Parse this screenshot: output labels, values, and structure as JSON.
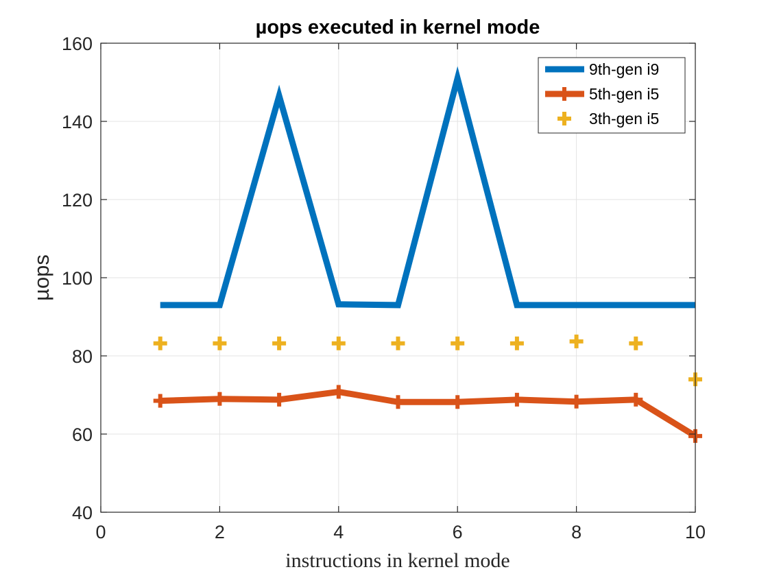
{
  "chart_data": {
    "type": "line",
    "title": "µops executed in kernel mode",
    "xlabel": "instructions in kernel mode",
    "ylabel": "µops",
    "xlim": [
      0,
      10
    ],
    "ylim": [
      40,
      160
    ],
    "xticks": [
      0,
      2,
      4,
      6,
      8,
      10
    ],
    "yticks": [
      40,
      60,
      80,
      100,
      120,
      140,
      160
    ],
    "grid": true,
    "legend_position": "top-right",
    "series": [
      {
        "name": "9th-gen i9",
        "style": "line",
        "color": "#0072BD",
        "x": [
          1,
          2,
          3,
          4,
          5,
          6,
          7,
          8,
          9,
          10
        ],
        "y": [
          93,
          93,
          146.5,
          93.2,
          93,
          151,
          93,
          93,
          93,
          93
        ]
      },
      {
        "name": "5th-gen i5",
        "style": "line-marker",
        "color": "#D95319",
        "x": [
          1,
          2,
          3,
          4,
          5,
          6,
          7,
          8,
          9,
          10
        ],
        "y": [
          68.5,
          69,
          68.8,
          70.8,
          68.2,
          68.2,
          68.8,
          68.3,
          68.8,
          59.5
        ]
      },
      {
        "name": "3th-gen i5",
        "style": "marker",
        "color": "#EDB120",
        "x": [
          1,
          2,
          3,
          4,
          5,
          6,
          7,
          8,
          9,
          10
        ],
        "y": [
          83.2,
          83.2,
          83.2,
          83.2,
          83.2,
          83.2,
          83.2,
          83.7,
          83.2,
          74
        ]
      }
    ]
  }
}
